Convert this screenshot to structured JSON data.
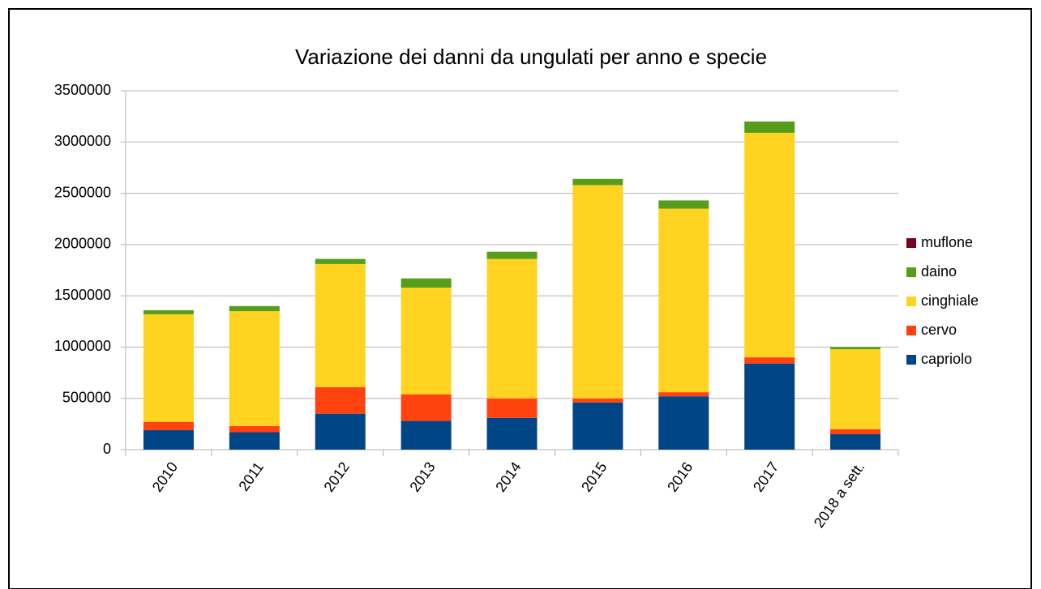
{
  "chart_data": {
    "type": "bar",
    "stacked": true,
    "title": "Variazione dei danni da ungulati per anno e specie",
    "categories": [
      "2010",
      "2011",
      "2012",
      "2013",
      "2014",
      "2015",
      "2016",
      "2017",
      "2018 a sett."
    ],
    "series": [
      {
        "name": "capriolo",
        "color": "#004586",
        "values": [
          190000,
          170000,
          350000,
          280000,
          310000,
          460000,
          520000,
          840000,
          150000
        ]
      },
      {
        "name": "cervo",
        "color": "#ff420e",
        "values": [
          80000,
          60000,
          260000,
          260000,
          190000,
          40000,
          40000,
          60000,
          50000
        ]
      },
      {
        "name": "cinghiale",
        "color": "#ffd320",
        "values": [
          1050000,
          1120000,
          1200000,
          1040000,
          1360000,
          2080000,
          1790000,
          2190000,
          780000
        ]
      },
      {
        "name": "daino",
        "color": "#579d1c",
        "values": [
          40000,
          50000,
          50000,
          90000,
          70000,
          60000,
          80000,
          110000,
          20000
        ]
      },
      {
        "name": "muflone",
        "color": "#7e0021",
        "values": [
          0,
          0,
          0,
          0,
          0,
          0,
          0,
          0,
          0
        ]
      }
    ],
    "ylim": [
      0,
      3500000
    ],
    "yticks": [
      0,
      500000,
      1000000,
      1500000,
      2000000,
      2500000,
      3000000,
      3500000
    ],
    "grid": true,
    "legend": "right"
  }
}
